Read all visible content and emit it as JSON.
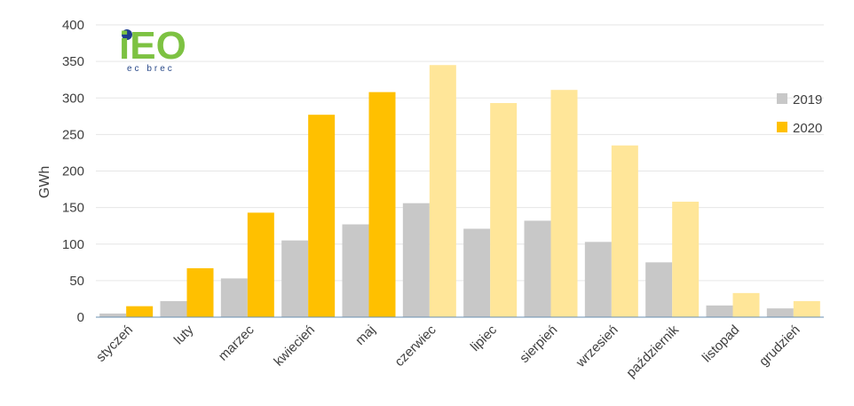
{
  "logo": {
    "main_text": "iEO",
    "sub_text": "ec brec"
  },
  "chart_data": {
    "type": "bar",
    "ylabel": "GWh",
    "ylim": [
      0,
      400
    ],
    "yticks": [
      0,
      50,
      100,
      150,
      200,
      250,
      300,
      350,
      400
    ],
    "categories": [
      "styczeń",
      "luty",
      "marzec",
      "kwiecień",
      "maj",
      "czerwiec",
      "lipiec",
      "sierpień",
      "wrzesień",
      "październik",
      "listopad",
      "grudzień"
    ],
    "series": [
      {
        "name": "2019",
        "color": "#c8c8c8",
        "values": [
          5,
          22,
          53,
          105,
          127,
          156,
          121,
          132,
          103,
          75,
          16,
          12
        ]
      },
      {
        "name": "2020",
        "color": "#ffc000",
        "values": [
          15,
          67,
          143,
          277,
          308,
          345,
          293,
          311,
          235,
          158,
          33,
          22
        ]
      }
    ],
    "highlight_color_2020_tail": "#ffe699",
    "grid": true,
    "legend_position": "right"
  }
}
